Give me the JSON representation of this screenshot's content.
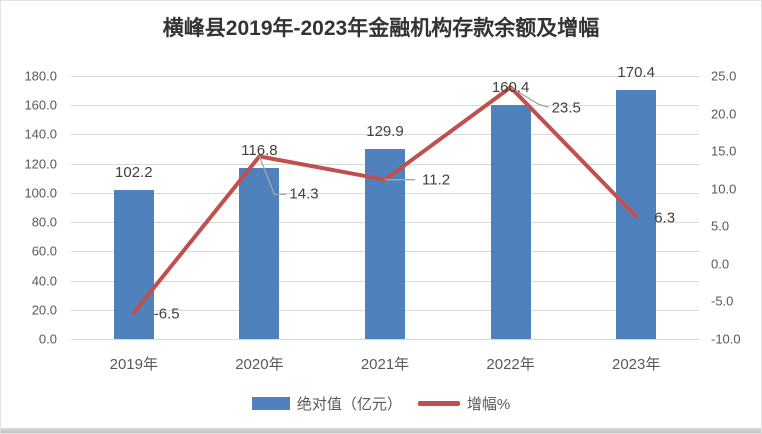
{
  "chart_data": {
    "type": "combo",
    "title": "横峰县2019年-2023年金融机构存款余额及增幅",
    "categories": [
      "2019年",
      "2020年",
      "2021年",
      "2022年",
      "2023年"
    ],
    "series": [
      {
        "name": "绝对值（亿元）",
        "type": "bar",
        "axis": "left",
        "values": [
          102.2,
          116.8,
          129.9,
          160.4,
          170.4
        ],
        "color": "#4F81BD"
      },
      {
        "name": "增幅%",
        "type": "line",
        "axis": "right",
        "values": [
          -6.5,
          14.3,
          11.2,
          23.5,
          6.3
        ],
        "color": "#C0504D"
      }
    ],
    "data_labels": {
      "bar": [
        "102.2",
        "116.8",
        "129.9",
        "160.4",
        "170.4"
      ],
      "line": [
        "-6.5",
        "14.3",
        "11.2",
        "23.5",
        "6.3"
      ]
    },
    "axes": {
      "left": {
        "min": 0,
        "max": 180,
        "step": 20,
        "tick_labels": [
          "0.0",
          "20.0",
          "40.0",
          "60.0",
          "80.0",
          "100.0",
          "120.0",
          "140.0",
          "160.0",
          "180.0"
        ]
      },
      "right": {
        "min": -10,
        "max": 25,
        "step": 5,
        "tick_labels": [
          "-10.0",
          "-5.0",
          "0.0",
          "5.0",
          "10.0",
          "15.0",
          "20.0",
          "25.0"
        ]
      }
    },
    "grid": true,
    "legend_position": "bottom",
    "colors": {
      "bar": "#4F81BD",
      "line": "#C0504D",
      "grid": "#D9D9D9",
      "leader": "#A6A6A6",
      "axis_text": "#595959",
      "label_text": "#404040",
      "title_text": "#333333"
    }
  }
}
